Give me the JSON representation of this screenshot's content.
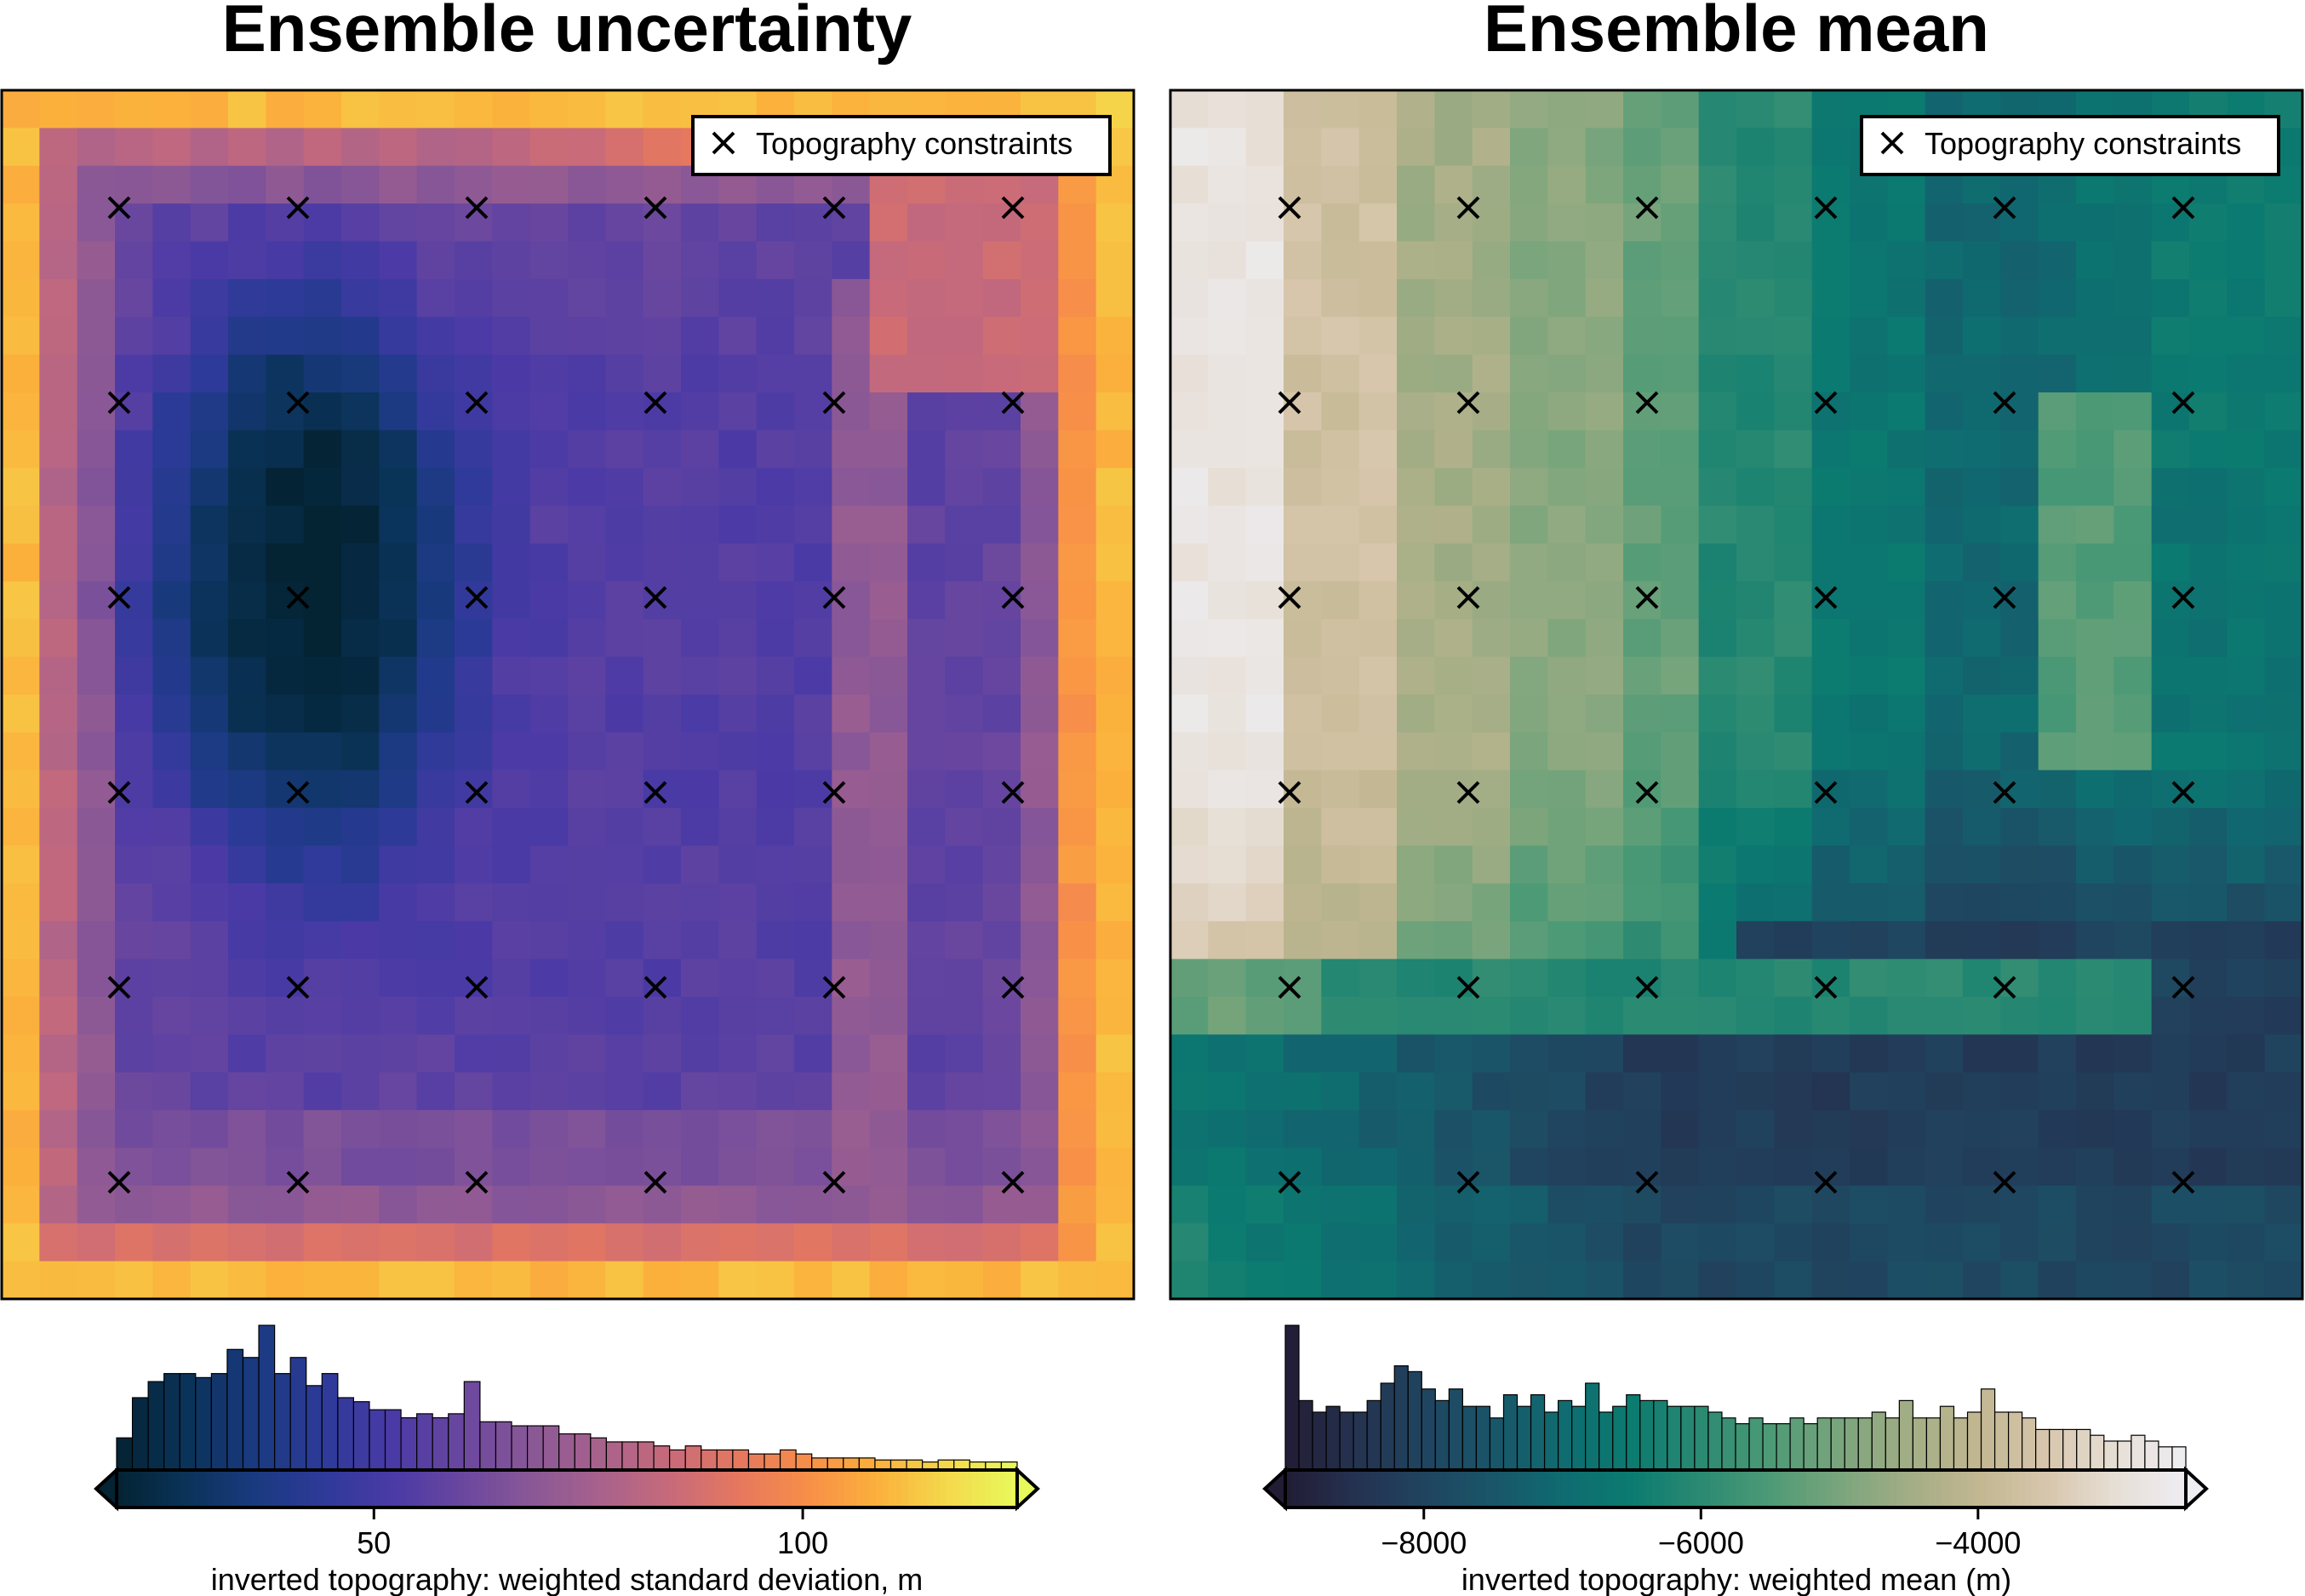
{
  "chart_data": [
    {
      "type": "heatmap",
      "title": "Ensemble uncertainty",
      "colormap": "thermal",
      "grid_shape": [
        32,
        30
      ],
      "legend_entry": "Topography constraints",
      "legend_placement": "top-right",
      "constraints_grid": {
        "cols": 6,
        "rows": 6
      },
      "colorbar": {
        "label": "inverted topography: weighted standard deviation, m",
        "range": [
          20,
          125
        ],
        "ticks": [
          50,
          100
        ],
        "tick_labels": [
          "50",
          "100"
        ],
        "extend": "both"
      },
      "histogram": [
        8,
        18,
        22,
        24,
        24,
        23,
        24,
        30,
        28,
        36,
        24,
        28,
        21,
        24,
        18,
        17,
        15,
        15,
        13,
        14,
        13,
        14,
        22,
        12,
        12,
        11,
        11,
        11,
        9,
        9,
        8,
        7,
        7,
        7,
        6,
        5,
        6,
        5,
        5,
        5,
        4,
        4,
        5,
        4,
        3,
        3,
        3,
        3,
        2.5,
        2.5,
        2.5,
        2,
        2.5,
        2.5,
        2,
        2,
        2
      ]
    },
    {
      "type": "heatmap",
      "title": "Ensemble mean",
      "colormap": "rain-inverted",
      "grid_shape": [
        32,
        30
      ],
      "legend_entry": "Topography constraints",
      "legend_placement": "top-right",
      "constraints_grid": {
        "cols": 6,
        "rows": 6
      },
      "colorbar": {
        "label": "inverted topography: weighted mean (m)",
        "range": [
          -9000,
          -2500
        ],
        "ticks": [
          -8000,
          -6000,
          -4000
        ],
        "tick_labels": [
          "−8000",
          "−6000",
          "−4000"
        ],
        "extend": "both"
      },
      "histogram": [
        25,
        12,
        10,
        11,
        10,
        10,
        12,
        15,
        18,
        17,
        14,
        12,
        14,
        11,
        11,
        9,
        13,
        11,
        13,
        10,
        12,
        11,
        15,
        10,
        11,
        13,
        12,
        12,
        11,
        11,
        11,
        10,
        9,
        8,
        9,
        8,
        8,
        9,
        8,
        9,
        9,
        9,
        9,
        10,
        9,
        12,
        9,
        9,
        11,
        9,
        10,
        14,
        10,
        10,
        9,
        7,
        7,
        7,
        7,
        6,
        5,
        5,
        6,
        5,
        4,
        4
      ]
    }
  ]
}
